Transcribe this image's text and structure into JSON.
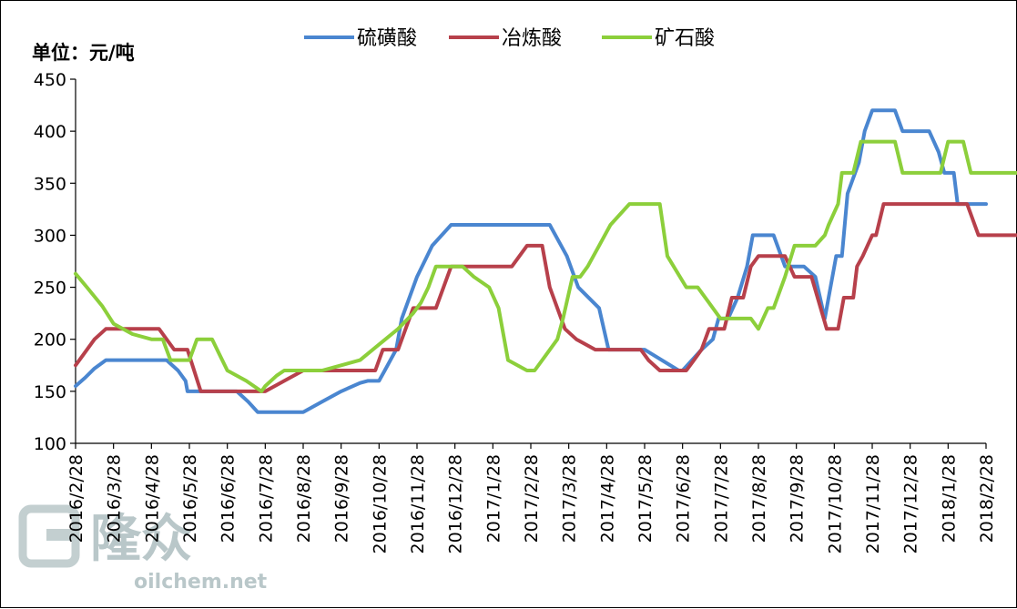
{
  "chart_data": {
    "type": "line",
    "unit_label": "单位：元/吨",
    "ylim": [
      100,
      450
    ],
    "yticks": [
      100,
      150,
      200,
      250,
      300,
      350,
      400,
      450
    ],
    "categories": [
      "2016/2/28",
      "2016/3/28",
      "2016/4/28",
      "2016/5/28",
      "2016/6/28",
      "2016/7/28",
      "2016/8/28",
      "2016/9/28",
      "2016/10/28",
      "2016/11/28",
      "2016/12/28",
      "2017/1/28",
      "2017/2/28",
      "2017/3/28",
      "2017/4/28",
      "2017/5/28",
      "2017/6/28",
      "2017/7/28",
      "2017/8/28",
      "2017/9/28",
      "2017/10/28",
      "2017/11/28",
      "2017/12/28",
      "2018/1/28",
      "2018/2/28"
    ],
    "grid": false,
    "legend_position": "top",
    "series": [
      {
        "name": "硫磺酸",
        "color": "#4a86d0",
        "points": [
          [
            0,
            155
          ],
          [
            0.25,
            163
          ],
          [
            0.5,
            172
          ],
          [
            0.8,
            180
          ],
          [
            1,
            180
          ],
          [
            1.5,
            180
          ],
          [
            2,
            180
          ],
          [
            2.4,
            180
          ],
          [
            2.7,
            170
          ],
          [
            2.9,
            160
          ],
          [
            2.95,
            150
          ],
          [
            3.1,
            150
          ],
          [
            3.3,
            150
          ],
          [
            4,
            150
          ],
          [
            4.25,
            150
          ],
          [
            4.55,
            140
          ],
          [
            4.8,
            130
          ],
          [
            5,
            130
          ],
          [
            5.5,
            130
          ],
          [
            6,
            130
          ],
          [
            6.25,
            135
          ],
          [
            6.5,
            140
          ],
          [
            7,
            150
          ],
          [
            7.5,
            158
          ],
          [
            7.7,
            160
          ],
          [
            8,
            160
          ],
          [
            8.15,
            170
          ],
          [
            8.45,
            190
          ],
          [
            8.6,
            220
          ],
          [
            9,
            260
          ],
          [
            9.4,
            290
          ],
          [
            9.9,
            310
          ],
          [
            10.5,
            310
          ],
          [
            11,
            310
          ],
          [
            11.5,
            310
          ],
          [
            12,
            310
          ],
          [
            12.5,
            310
          ],
          [
            12.95,
            280
          ],
          [
            13.25,
            250
          ],
          [
            13.8,
            230
          ],
          [
            14.05,
            190
          ],
          [
            14.5,
            190
          ],
          [
            15,
            190
          ],
          [
            15.9,
            170
          ],
          [
            16,
            170
          ],
          [
            16.5,
            190
          ],
          [
            16.8,
            200
          ],
          [
            16.95,
            220
          ],
          [
            17.2,
            220
          ],
          [
            17.45,
            240
          ],
          [
            17.7,
            270
          ],
          [
            17.85,
            300
          ],
          [
            18,
            300
          ],
          [
            18.4,
            300
          ],
          [
            18.7,
            270
          ],
          [
            19.2,
            270
          ],
          [
            19.5,
            260
          ],
          [
            19.75,
            220
          ],
          [
            20.05,
            280
          ],
          [
            20.2,
            280
          ],
          [
            20.35,
            340
          ],
          [
            20.65,
            370
          ],
          [
            20.8,
            400
          ],
          [
            21,
            420
          ],
          [
            21.3,
            420
          ],
          [
            21.6,
            420
          ],
          [
            21.8,
            400
          ],
          [
            22.2,
            400
          ],
          [
            22.5,
            400
          ],
          [
            22.75,
            380
          ],
          [
            22.9,
            360
          ],
          [
            23.15,
            360
          ],
          [
            23.25,
            330
          ],
          [
            23.5,
            330
          ],
          [
            24,
            330
          ]
        ]
      },
      {
        "name": "冶炼酸",
        "color": "#b7404b",
        "points": [
          [
            0,
            175
          ],
          [
            0.2,
            185
          ],
          [
            0.5,
            200
          ],
          [
            0.8,
            210
          ],
          [
            1,
            210
          ],
          [
            1.5,
            210
          ],
          [
            2,
            210
          ],
          [
            2.2,
            210
          ],
          [
            2.6,
            190
          ],
          [
            2.95,
            190
          ],
          [
            3.3,
            150
          ],
          [
            3.5,
            150
          ],
          [
            4,
            150
          ],
          [
            4.5,
            150
          ],
          [
            4.8,
            150
          ],
          [
            5,
            150
          ],
          [
            5.5,
            160
          ],
          [
            6,
            170
          ],
          [
            6.5,
            170
          ],
          [
            7,
            170
          ],
          [
            7.5,
            170
          ],
          [
            7.9,
            170
          ],
          [
            8.1,
            190
          ],
          [
            8.5,
            190
          ],
          [
            8.9,
            230
          ],
          [
            9.1,
            230
          ],
          [
            9.5,
            230
          ],
          [
            9.9,
            270
          ],
          [
            10,
            270
          ],
          [
            10.5,
            270
          ],
          [
            11,
            270
          ],
          [
            11.5,
            270
          ],
          [
            11.9,
            290
          ],
          [
            12.3,
            290
          ],
          [
            12.5,
            250
          ],
          [
            12.9,
            210
          ],
          [
            13.2,
            200
          ],
          [
            13.7,
            190
          ],
          [
            14,
            190
          ],
          [
            14.5,
            190
          ],
          [
            14.9,
            190
          ],
          [
            15.1,
            180
          ],
          [
            15.4,
            170
          ],
          [
            15.8,
            170
          ],
          [
            16.1,
            170
          ],
          [
            16.3,
            180
          ],
          [
            16.5,
            190
          ],
          [
            16.7,
            210
          ],
          [
            17.1,
            210
          ],
          [
            17.3,
            240
          ],
          [
            17.6,
            240
          ],
          [
            17.8,
            270
          ],
          [
            18,
            280
          ],
          [
            18.5,
            280
          ],
          [
            18.7,
            280
          ],
          [
            18.95,
            260
          ],
          [
            19.4,
            260
          ],
          [
            19.8,
            210
          ],
          [
            20.1,
            210
          ],
          [
            20.25,
            240
          ],
          [
            20.5,
            240
          ],
          [
            20.6,
            270
          ],
          [
            20.75,
            280
          ],
          [
            21,
            300
          ],
          [
            21.1,
            300
          ],
          [
            21.3,
            330
          ],
          [
            21.5,
            330
          ],
          [
            22,
            330
          ],
          [
            22.5,
            330
          ],
          [
            23,
            330
          ],
          [
            23.5,
            330
          ],
          [
            23.8,
            300
          ],
          [
            24,
            300
          ],
          [
            24.5,
            300
          ],
          [
            24.8,
            300
          ],
          [
            25,
            300
          ]
        ]
      },
      {
        "name": "矿石酸",
        "color": "#8ccf3b",
        "points": [
          [
            0,
            263
          ],
          [
            0.3,
            250
          ],
          [
            0.7,
            232
          ],
          [
            1,
            215
          ],
          [
            1.5,
            205
          ],
          [
            2,
            200
          ],
          [
            2.3,
            200
          ],
          [
            2.5,
            180
          ],
          [
            3,
            180
          ],
          [
            3.1,
            190
          ],
          [
            3.2,
            200
          ],
          [
            3.6,
            200
          ],
          [
            3.8,
            185
          ],
          [
            4,
            170
          ],
          [
            4.5,
            160
          ],
          [
            4.9,
            150
          ],
          [
            5,
            155
          ],
          [
            5.3,
            165
          ],
          [
            5.5,
            170
          ],
          [
            6,
            170
          ],
          [
            6.5,
            170
          ],
          [
            7,
            175
          ],
          [
            7.5,
            180
          ],
          [
            8,
            195
          ],
          [
            8.5,
            210
          ],
          [
            8.9,
            225
          ],
          [
            9.1,
            235
          ],
          [
            9.3,
            250
          ],
          [
            9.5,
            270
          ],
          [
            9.9,
            270
          ],
          [
            10.2,
            270
          ],
          [
            10.5,
            260
          ],
          [
            10.9,
            250
          ],
          [
            11.15,
            230
          ],
          [
            11.4,
            180
          ],
          [
            11.9,
            170
          ],
          [
            12.1,
            170
          ],
          [
            12.4,
            185
          ],
          [
            12.7,
            200
          ],
          [
            12.85,
            220
          ],
          [
            13.1,
            260
          ],
          [
            13.3,
            260
          ],
          [
            13.5,
            270
          ],
          [
            13.8,
            290
          ],
          [
            14.1,
            310
          ],
          [
            14.6,
            330
          ],
          [
            15,
            330
          ],
          [
            15.4,
            330
          ],
          [
            15.6,
            280
          ],
          [
            16.1,
            250
          ],
          [
            16.4,
            250
          ],
          [
            16.7,
            235
          ],
          [
            17,
            220
          ],
          [
            17.4,
            220
          ],
          [
            17.8,
            220
          ],
          [
            18,
            210
          ],
          [
            18.25,
            230
          ],
          [
            18.4,
            230
          ],
          [
            18.7,
            260
          ],
          [
            18.95,
            290
          ],
          [
            19.3,
            290
          ],
          [
            19.5,
            290
          ],
          [
            19.75,
            300
          ],
          [
            19.85,
            310
          ],
          [
            20.1,
            330
          ],
          [
            20.2,
            360
          ],
          [
            20.5,
            360
          ],
          [
            20.7,
            390
          ],
          [
            21,
            390
          ],
          [
            21.4,
            390
          ],
          [
            21.6,
            390
          ],
          [
            21.8,
            360
          ],
          [
            22.5,
            360
          ],
          [
            22.8,
            360
          ],
          [
            23,
            390
          ],
          [
            23.4,
            390
          ],
          [
            23.6,
            360
          ],
          [
            24,
            360
          ],
          [
            24.5,
            360
          ],
          [
            25,
            360
          ]
        ]
      }
    ]
  },
  "watermark": {
    "brand": "隆众",
    "site": "oilchem.net"
  }
}
